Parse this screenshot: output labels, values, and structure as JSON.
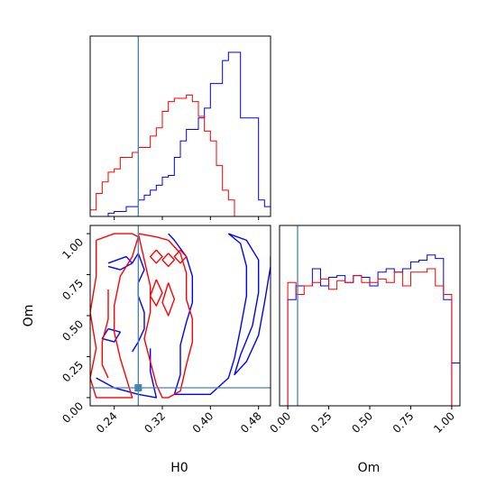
{
  "colors": {
    "series_a": "#0000ff",
    "series_b": "#ff0000",
    "truth": "#4682b4",
    "frame": "#000000"
  },
  "chart_data": [
    {
      "panel": "H0 marginal",
      "type": "histogram",
      "x_range": [
        0.2,
        0.5
      ],
      "truth_x": 0.28,
      "bin_width": 0.01,
      "series": [
        {
          "color": "#0000ff",
          "bins": [
            0.2,
            0.21,
            0.22,
            0.23,
            0.24,
            0.25,
            0.26,
            0.27,
            0.28,
            0.29,
            0.3,
            0.31,
            0.32,
            0.33,
            0.34,
            0.35,
            0.36,
            0.37,
            0.38,
            0.39,
            0.4,
            0.41,
            0.42,
            0.43,
            0.44,
            0.45,
            0.46,
            0.47,
            0.48,
            0.49
          ],
          "heights": [
            0.0,
            0.0,
            0.0,
            0.02,
            0.03,
            0.03,
            0.06,
            0.06,
            0.1,
            0.13,
            0.16,
            0.19,
            0.24,
            0.25,
            0.36,
            0.46,
            0.53,
            0.53,
            0.6,
            0.66,
            0.81,
            0.81,
            0.95,
            1.0,
            1.0,
            0.6,
            0.6,
            0.6,
            0.1,
            0.06
          ]
        },
        {
          "color": "#ff0000",
          "bins": [
            0.2,
            0.21,
            0.22,
            0.23,
            0.24,
            0.25,
            0.26,
            0.27,
            0.28,
            0.29,
            0.3,
            0.31,
            0.32,
            0.33,
            0.34,
            0.35,
            0.36,
            0.37,
            0.38,
            0.39,
            0.4,
            0.41,
            0.42,
            0.43,
            0.44,
            0.45,
            0.46,
            0.47,
            0.48,
            0.49
          ],
          "heights": [
            0.04,
            0.14,
            0.21,
            0.27,
            0.29,
            0.36,
            0.36,
            0.39,
            0.42,
            0.42,
            0.49,
            0.54,
            0.64,
            0.7,
            0.72,
            0.72,
            0.74,
            0.7,
            0.61,
            0.52,
            0.46,
            0.31,
            0.16,
            0.1,
            0.0,
            0.0,
            0.0,
            0.0,
            0.0,
            0.0
          ]
        }
      ]
    },
    {
      "panel": "H0 vs Om contours",
      "type": "contour",
      "x_range": [
        0.2,
        0.5
      ],
      "y_range": [
        -0.05,
        1.05
      ],
      "xlabel": "H0",
      "ylabel": "Om",
      "x_ticks": [
        "0.24",
        "0.32",
        "0.40",
        "0.48"
      ],
      "x_tick_values": [
        0.24,
        0.32,
        0.4,
        0.48
      ],
      "y_ticks": [
        "0.00",
        "0.25",
        "0.50",
        "0.75",
        "1.00"
      ],
      "y_tick_values": [
        0.0,
        0.25,
        0.5,
        0.75,
        1.0
      ],
      "truth_point": {
        "x": 0.28,
        "y": 0.06
      },
      "series": [
        {
          "color": "#0000ff",
          "contours": [
            [
              [
                0.33,
                1.0
              ],
              [
                0.34,
                0.96
              ],
              [
                0.36,
                0.86
              ],
              [
                0.37,
                0.74
              ],
              [
                0.37,
                0.58
              ],
              [
                0.36,
                0.46
              ],
              [
                0.35,
                0.32
              ],
              [
                0.35,
                0.14
              ],
              [
                0.34,
                0.02
              ],
              [
                0.4,
                0.02
              ],
              [
                0.43,
                0.12
              ],
              [
                0.44,
                0.24
              ],
              [
                0.45,
                0.42
              ],
              [
                0.46,
                0.62
              ],
              [
                0.46,
                0.8
              ],
              [
                0.45,
                0.94
              ],
              [
                0.43,
                1.0
              ]
            ],
            [
              [
                0.43,
                1.0
              ],
              [
                0.46,
                0.96
              ],
              [
                0.48,
                0.84
              ],
              [
                0.48,
                0.64
              ],
              [
                0.47,
                0.44
              ],
              [
                0.45,
                0.26
              ],
              [
                0.44,
                0.14
              ],
              [
                0.46,
                0.22
              ],
              [
                0.48,
                0.38
              ],
              [
                0.49,
                0.58
              ],
              [
                0.5,
                0.8
              ],
              [
                0.5,
                0.86
              ]
            ],
            [
              [
                0.27,
                0.82
              ],
              [
                0.28,
                0.88
              ],
              [
                0.29,
                0.78
              ],
              [
                0.28,
                0.7
              ],
              [
                0.28,
                0.62
              ],
              [
                0.29,
                0.52
              ],
              [
                0.29,
                0.42
              ],
              [
                0.28,
                0.34
              ],
              [
                0.27,
                0.28
              ]
            ],
            [
              [
                0.23,
                0.82
              ],
              [
                0.26,
                0.86
              ],
              [
                0.27,
                0.82
              ],
              [
                0.25,
                0.78
              ],
              [
                0.23,
                0.8
              ]
            ],
            [
              [
                0.23,
                0.42
              ],
              [
                0.25,
                0.4
              ],
              [
                0.24,
                0.34
              ],
              [
                0.22,
                0.36
              ],
              [
                0.23,
                0.42
              ]
            ],
            [
              [
                0.21,
                0.12
              ],
              [
                0.24,
                0.06
              ],
              [
                0.28,
                0.02
              ],
              [
                0.31,
                0.0
              ],
              [
                0.3,
                0.16
              ],
              [
                0.3,
                0.3
              ]
            ]
          ]
        },
        {
          "color": "#ff0000",
          "contours": [
            [
              [
                0.21,
                0.96
              ],
              [
                0.24,
                1.0
              ],
              [
                0.27,
                1.0
              ],
              [
                0.28,
                0.98
              ],
              [
                0.27,
                0.86
              ],
              [
                0.25,
                0.74
              ],
              [
                0.24,
                0.56
              ],
              [
                0.24,
                0.4
              ],
              [
                0.25,
                0.24
              ],
              [
                0.26,
                0.12
              ],
              [
                0.27,
                0.0
              ],
              [
                0.21,
                0.0
              ],
              [
                0.2,
                0.12
              ],
              [
                0.21,
                0.3
              ],
              [
                0.2,
                0.52
              ],
              [
                0.21,
                0.74
              ],
              [
                0.21,
                0.96
              ]
            ],
            [
              [
                0.28,
                1.0
              ],
              [
                0.31,
                0.98
              ],
              [
                0.33,
                0.96
              ],
              [
                0.35,
                0.88
              ],
              [
                0.36,
                0.76
              ],
              [
                0.36,
                0.6
              ],
              [
                0.37,
                0.48
              ],
              [
                0.37,
                0.34
              ],
              [
                0.36,
                0.2
              ],
              [
                0.35,
                0.04
              ],
              [
                0.33,
                0.0
              ],
              [
                0.32,
                0.0
              ],
              [
                0.31,
                0.08
              ],
              [
                0.3,
                0.22
              ],
              [
                0.29,
                0.36
              ],
              [
                0.3,
                0.52
              ],
              [
                0.3,
                0.68
              ],
              [
                0.29,
                0.84
              ],
              [
                0.28,
                1.0
              ]
            ],
            [
              [
                0.31,
                0.9
              ],
              [
                0.32,
                0.86
              ],
              [
                0.31,
                0.82
              ],
              [
                0.3,
                0.86
              ],
              [
                0.31,
                0.9
              ]
            ],
            [
              [
                0.33,
                0.88
              ],
              [
                0.34,
                0.84
              ],
              [
                0.33,
                0.8
              ],
              [
                0.32,
                0.84
              ],
              [
                0.33,
                0.88
              ]
            ],
            [
              [
                0.35,
                0.9
              ],
              [
                0.36,
                0.86
              ],
              [
                0.35,
                0.82
              ],
              [
                0.34,
                0.86
              ],
              [
                0.35,
                0.9
              ]
            ],
            [
              [
                0.31,
                0.72
              ],
              [
                0.32,
                0.64
              ],
              [
                0.31,
                0.56
              ],
              [
                0.3,
                0.62
              ],
              [
                0.31,
                0.72
              ]
            ],
            [
              [
                0.33,
                0.7
              ],
              [
                0.34,
                0.6
              ],
              [
                0.33,
                0.5
              ],
              [
                0.32,
                0.58
              ],
              [
                0.33,
                0.7
              ]
            ],
            [
              [
                0.23,
                0.66
              ],
              [
                0.23,
                0.48
              ],
              [
                0.22,
                0.34
              ],
              [
                0.22,
                0.2
              ],
              [
                0.23,
                0.12
              ]
            ]
          ]
        }
      ]
    },
    {
      "panel": "Om marginal",
      "type": "histogram",
      "x_range": [
        -0.05,
        1.05
      ],
      "xlabel": "Om",
      "x_ticks": [
        "0.00",
        "0.25",
        "0.50",
        "0.75",
        "1.00"
      ],
      "x_tick_values": [
        0.0,
        0.25,
        0.5,
        0.75,
        1.0
      ],
      "truth_x": 0.06,
      "series": [
        {
          "color": "#0000ff",
          "bins": [
            0.0,
            0.05,
            0.1,
            0.15,
            0.2,
            0.25,
            0.3,
            0.35,
            0.4,
            0.45,
            0.5,
            0.55,
            0.6,
            0.65,
            0.7,
            0.75,
            0.8,
            0.85,
            0.9,
            0.95
          ],
          "heights": [
            0.62,
            0.7,
            0.7,
            0.8,
            0.7,
            0.75,
            0.76,
            0.72,
            0.76,
            0.75,
            0.7,
            0.78,
            0.8,
            0.78,
            0.8,
            0.84,
            0.85,
            0.88,
            0.86,
            0.62
          ]
        },
        {
          "color": "#ff0000",
          "bins": [
            0.0,
            0.05,
            0.1,
            0.15,
            0.2,
            0.25,
            0.3,
            0.35,
            0.4,
            0.45,
            0.5,
            0.55,
            0.6,
            0.65,
            0.7,
            0.75,
            0.8,
            0.85,
            0.9,
            0.95
          ],
          "heights": [
            0.72,
            0.65,
            0.7,
            0.72,
            0.74,
            0.68,
            0.73,
            0.72,
            0.76,
            0.72,
            0.72,
            0.74,
            0.72,
            0.78,
            0.7,
            0.78,
            0.78,
            0.8,
            0.7,
            0.65
          ]
        }
      ]
    }
  ]
}
